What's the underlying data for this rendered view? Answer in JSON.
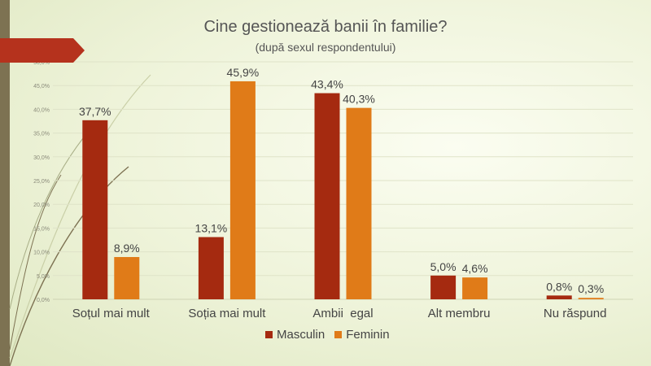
{
  "chart_data": {
    "type": "bar",
    "title": "Cine gestionează banii în familie?",
    "subtitle": "(după sexul respondentului)",
    "categories": [
      "Soțul mai mult",
      "Soția mai mult",
      "Ambii  egal",
      "Alt membru",
      "Nu răspund"
    ],
    "series": [
      {
        "name": "Masculin",
        "color": "#a52a10",
        "values": [
          37.7,
          13.1,
          43.4,
          5.0,
          0.8
        ],
        "labels": [
          "37,7%",
          "13,1%",
          "43,4%",
          "5,0%",
          "0,8%"
        ]
      },
      {
        "name": "Feminin",
        "color": "#e07b18",
        "values": [
          8.9,
          45.9,
          40.3,
          4.6,
          0.3
        ],
        "labels": [
          "8,9%",
          "45,9%",
          "40,3%",
          "4,6%",
          "0,3%"
        ]
      }
    ],
    "yticks": [
      0,
      5,
      10,
      15,
      20,
      25,
      30,
      35,
      40,
      45,
      50
    ],
    "ytick_labels": [
      "0,0%",
      "5,0%",
      "10,0%",
      "15,0%",
      "20,0%",
      "25,0%",
      "30,0%",
      "35,0%",
      "40,0%",
      "45,0%",
      "50,0%"
    ],
    "ylim": [
      0,
      50
    ],
    "grid": true,
    "legend_position": "bottom"
  }
}
